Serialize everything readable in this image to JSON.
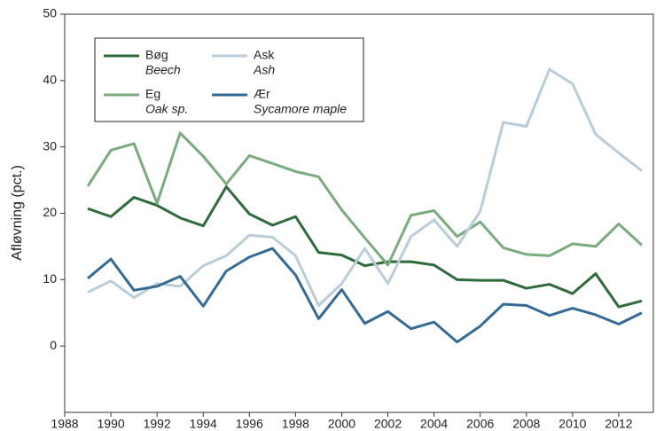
{
  "chart_data": {
    "type": "line",
    "ylabel": "Afløvning (pct.)",
    "x": [
      1989,
      1990,
      1991,
      1992,
      1993,
      1994,
      1995,
      1996,
      1997,
      1998,
      1999,
      2000,
      2001,
      2002,
      2003,
      2004,
      2005,
      2006,
      2007,
      2008,
      2009,
      2010,
      2011,
      2012,
      2013
    ],
    "series": [
      {
        "name": "Bøg",
        "subname": "Beech",
        "color": "#2e6b3a",
        "values": [
          20.7,
          19.5,
          22.4,
          21.2,
          19.3,
          18.1,
          24.0,
          19.9,
          18.2,
          19.5,
          14.1,
          13.7,
          12.1,
          12.7,
          12.7,
          12.2,
          10.0,
          9.9,
          9.9,
          8.7,
          9.3,
          7.9,
          10.9,
          5.9,
          6.8
        ]
      },
      {
        "name": "Eg",
        "subname": "Oak sp.",
        "color": "#7aab7e",
        "values": [
          24.1,
          29.5,
          30.5,
          21.5,
          32.1,
          28.6,
          24.4,
          28.7,
          27.5,
          26.3,
          25.5,
          20.5,
          16.3,
          12.2,
          19.7,
          20.4,
          16.5,
          18.7,
          14.8,
          13.8,
          13.6,
          15.4,
          15.0,
          18.4,
          15.2
        ]
      },
      {
        "name": "Ask",
        "subname": "Ash",
        "color": "#b8cdd9",
        "values": [
          8.1,
          9.8,
          7.3,
          9.4,
          9.0,
          12.1,
          13.6,
          16.7,
          16.4,
          13.6,
          6.1,
          9.4,
          14.7,
          9.4,
          16.5,
          19.0,
          15.0,
          20.3,
          33.7,
          33.1,
          41.7,
          39.5,
          31.9,
          29.1,
          26.4
        ]
      },
      {
        "name": "Ær",
        "subname": "Sycamore maple",
        "color": "#336b96",
        "values": [
          10.2,
          13.1,
          8.4,
          9.0,
          10.5,
          6.0,
          11.3,
          13.4,
          14.7,
          10.7,
          4.1,
          8.5,
          3.4,
          5.2,
          2.6,
          3.6,
          0.6,
          3.0,
          6.3,
          6.1,
          4.6,
          5.7,
          4.7,
          3.3,
          5.0
        ]
      }
    ],
    "xlim": [
      1988,
      2013.5
    ],
    "xticks": [
      1988,
      1990,
      1992,
      1994,
      1996,
      1998,
      2000,
      2002,
      2004,
      2006,
      2008,
      2010,
      2012
    ],
    "ylim": [
      -10,
      50
    ],
    "yticks": [
      0,
      10,
      20,
      30,
      40,
      50
    ],
    "grid": false,
    "legend": "upper left"
  }
}
